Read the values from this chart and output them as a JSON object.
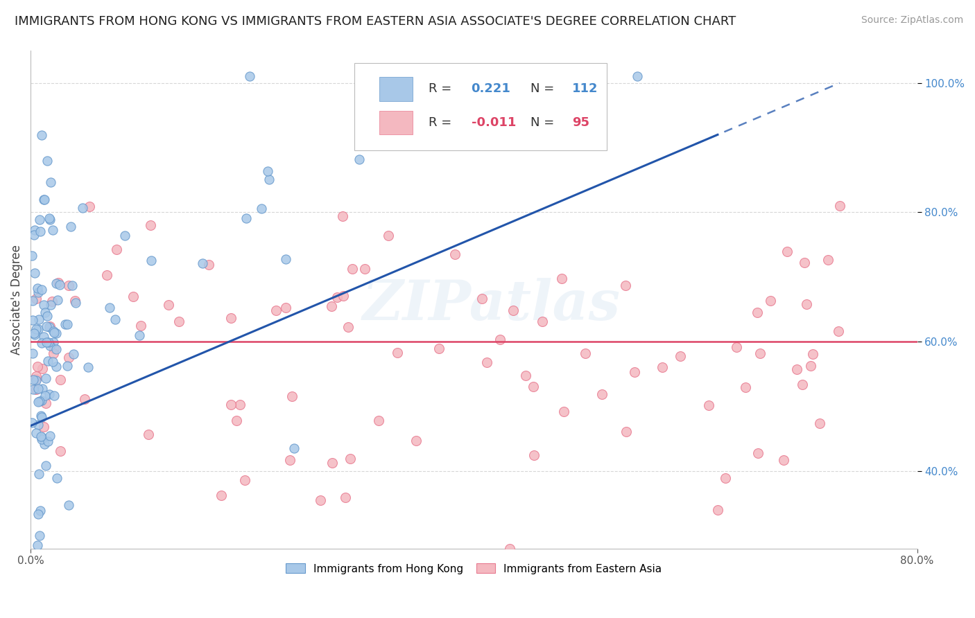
{
  "title": "IMMIGRANTS FROM HONG KONG VS IMMIGRANTS FROM EASTERN ASIA ASSOCIATE'S DEGREE CORRELATION CHART",
  "source": "Source: ZipAtlas.com",
  "ylabel": "Associate's Degree",
  "legend1_label": "Immigrants from Hong Kong",
  "legend2_label": "Immigrants from Eastern Asia",
  "R1": 0.221,
  "N1": 112,
  "R2": -0.011,
  "N2": 95,
  "blue_color": "#a8c8e8",
  "blue_edge_color": "#6699cc",
  "pink_color": "#f4b8c0",
  "pink_edge_color": "#e87a90",
  "blue_line_color": "#2255aa",
  "pink_line_color": "#dd4466",
  "background_color": "#ffffff",
  "watermark": "ZIPatlas",
  "xlim": [
    0.0,
    0.8
  ],
  "ylim": [
    0.28,
    1.05
  ],
  "title_fontsize": 13,
  "source_fontsize": 10,
  "ylabel_fontsize": 12,
  "tick_fontsize": 11,
  "legend_fontsize": 11
}
